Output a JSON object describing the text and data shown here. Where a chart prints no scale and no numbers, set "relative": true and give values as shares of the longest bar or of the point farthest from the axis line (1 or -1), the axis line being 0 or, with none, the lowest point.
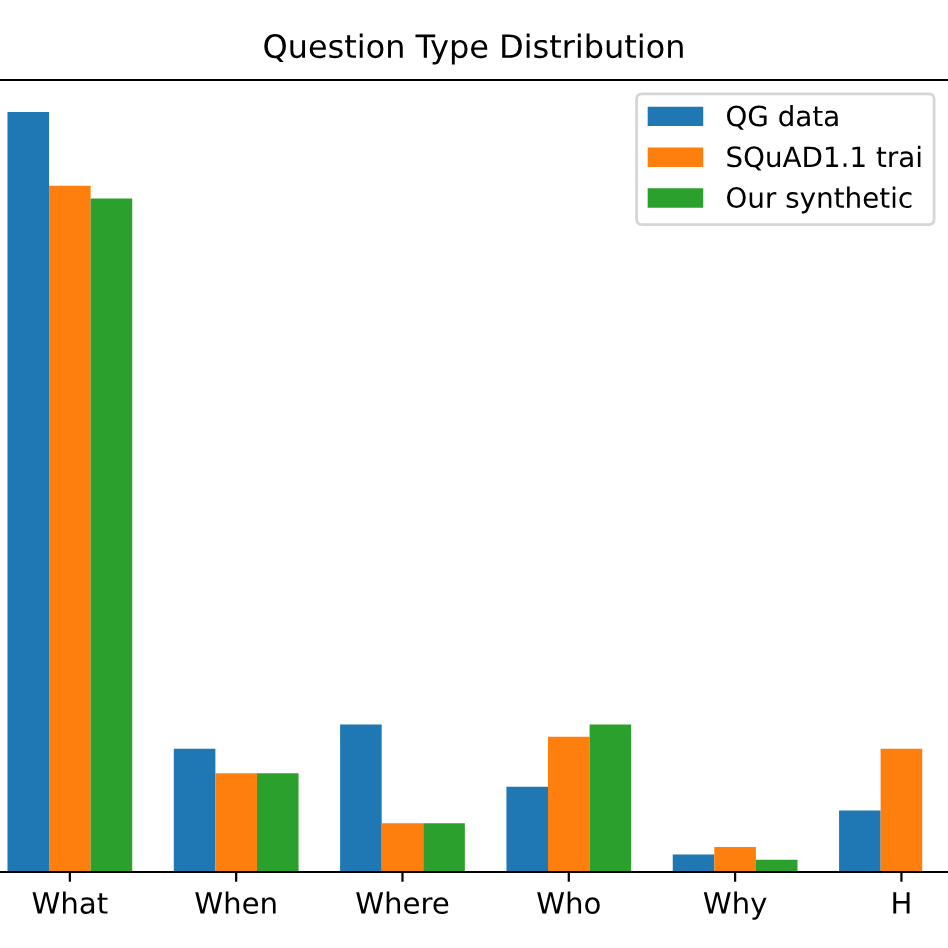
{
  "chart_data": {
    "type": "bar",
    "title": "Question Type Distribution",
    "relative": true,
    "categories": [
      "What",
      "When",
      "Where",
      "Who",
      "Why",
      "H"
    ],
    "series": [
      {
        "name": "QG data",
        "color": "#1f77b4",
        "values": [
          1,
          0.162,
          0.194,
          0.112,
          0.023,
          0.081
        ]
      },
      {
        "name": "SQuAD1.1 trai",
        "color": "#ff7f0e",
        "values": [
          0.903,
          0.13,
          0.064,
          0.178,
          0.033,
          0.162
        ]
      },
      {
        "name": "Our synthetic",
        "color": "#2ca02c",
        "values": [
          0.886,
          0.13,
          0.064,
          0.194,
          0.016,
          null
        ]
      }
    ],
    "legend": "top right",
    "grid": false
  }
}
